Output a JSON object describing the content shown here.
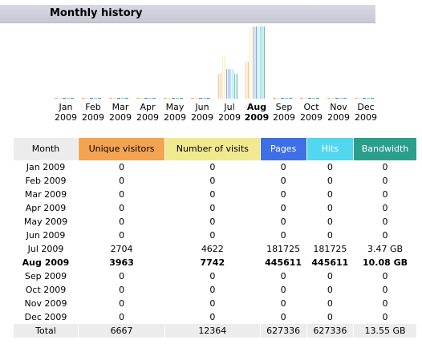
{
  "section_title": "Monthly history",
  "colors": {
    "unique_visitors": "#f4a451",
    "visits": "#f1e98f",
    "pages": "#3f6fe4",
    "hits": "#51d8ef",
    "bandwidth": "#2a9f8c",
    "month_header": "#ececec"
  },
  "months": [
    {
      "month": "Jan",
      "year": "2009"
    },
    {
      "month": "Feb",
      "year": "2009"
    },
    {
      "month": "Mar",
      "year": "2009"
    },
    {
      "month": "Apr",
      "year": "2009"
    },
    {
      "month": "May",
      "year": "2009"
    },
    {
      "month": "Jun",
      "year": "2009"
    },
    {
      "month": "Jul",
      "year": "2009"
    },
    {
      "month": "Aug",
      "year": "2009"
    },
    {
      "month": "Sep",
      "year": "2009"
    },
    {
      "month": "Oct",
      "year": "2009"
    },
    {
      "month": "Nov",
      "year": "2009"
    },
    {
      "month": "Dec",
      "year": "2009"
    }
  ],
  "current_month_index": 7,
  "table": {
    "headers": {
      "month": "Month",
      "unique_visitors": "Unique visitors",
      "visits": "Number of visits",
      "pages": "Pages",
      "hits": "Hits",
      "bandwidth": "Bandwidth"
    },
    "rows": [
      {
        "month": "Jan 2009",
        "unique_visitors": "0",
        "visits": "0",
        "pages": "0",
        "hits": "0",
        "bandwidth": "0"
      },
      {
        "month": "Feb 2009",
        "unique_visitors": "0",
        "visits": "0",
        "pages": "0",
        "hits": "0",
        "bandwidth": "0"
      },
      {
        "month": "Mar 2009",
        "unique_visitors": "0",
        "visits": "0",
        "pages": "0",
        "hits": "0",
        "bandwidth": "0"
      },
      {
        "month": "Apr 2009",
        "unique_visitors": "0",
        "visits": "0",
        "pages": "0",
        "hits": "0",
        "bandwidth": "0"
      },
      {
        "month": "May 2009",
        "unique_visitors": "0",
        "visits": "0",
        "pages": "0",
        "hits": "0",
        "bandwidth": "0"
      },
      {
        "month": "Jun 2009",
        "unique_visitors": "0",
        "visits": "0",
        "pages": "0",
        "hits": "0",
        "bandwidth": "0"
      },
      {
        "month": "Jul 2009",
        "unique_visitors": "2704",
        "visits": "4622",
        "pages": "181725",
        "hits": "181725",
        "bandwidth": "3.47 GB"
      },
      {
        "month": "Aug 2009",
        "unique_visitors": "3963",
        "visits": "7742",
        "pages": "445611",
        "hits": "445611",
        "bandwidth": "10.08 GB"
      },
      {
        "month": "Sep 2009",
        "unique_visitors": "0",
        "visits": "0",
        "pages": "0",
        "hits": "0",
        "bandwidth": "0"
      },
      {
        "month": "Oct 2009",
        "unique_visitors": "0",
        "visits": "0",
        "pages": "0",
        "hits": "0",
        "bandwidth": "0"
      },
      {
        "month": "Nov 2009",
        "unique_visitors": "0",
        "visits": "0",
        "pages": "0",
        "hits": "0",
        "bandwidth": "0"
      },
      {
        "month": "Dec 2009",
        "unique_visitors": "0",
        "visits": "0",
        "pages": "0",
        "hits": "0",
        "bandwidth": "0"
      }
    ],
    "total": {
      "label": "Total",
      "unique_visitors": "6667",
      "visits": "12364",
      "pages": "627336",
      "hits": "627336",
      "bandwidth": "13.55 GB"
    }
  },
  "chart_data": {
    "type": "bar",
    "categories": [
      "Jan 2009",
      "Feb 2009",
      "Mar 2009",
      "Apr 2009",
      "May 2009",
      "Jun 2009",
      "Jul 2009",
      "Aug 2009",
      "Sep 2009",
      "Oct 2009",
      "Nov 2009",
      "Dec 2009"
    ],
    "series": [
      {
        "name": "Unique visitors",
        "values": [
          0,
          0,
          0,
          0,
          0,
          0,
          2704,
          3963,
          0,
          0,
          0,
          0
        ]
      },
      {
        "name": "Number of visits",
        "values": [
          0,
          0,
          0,
          0,
          0,
          0,
          4622,
          7742,
          0,
          0,
          0,
          0
        ]
      },
      {
        "name": "Pages",
        "values": [
          0,
          0,
          0,
          0,
          0,
          0,
          181725,
          445611,
          0,
          0,
          0,
          0
        ]
      },
      {
        "name": "Hits",
        "values": [
          0,
          0,
          0,
          0,
          0,
          0,
          181725,
          445611,
          0,
          0,
          0,
          0
        ]
      },
      {
        "name": "Bandwidth (GB)",
        "values": [
          0,
          0,
          0,
          0,
          0,
          0,
          3.47,
          10.08,
          0,
          0,
          0,
          0
        ]
      }
    ],
    "scale_groups": [
      [
        "Unique visitors",
        "Number of visits"
      ],
      [
        "Pages",
        "Hits"
      ],
      [
        "Bandwidth (GB)"
      ]
    ],
    "grid": false,
    "legend": "none"
  }
}
